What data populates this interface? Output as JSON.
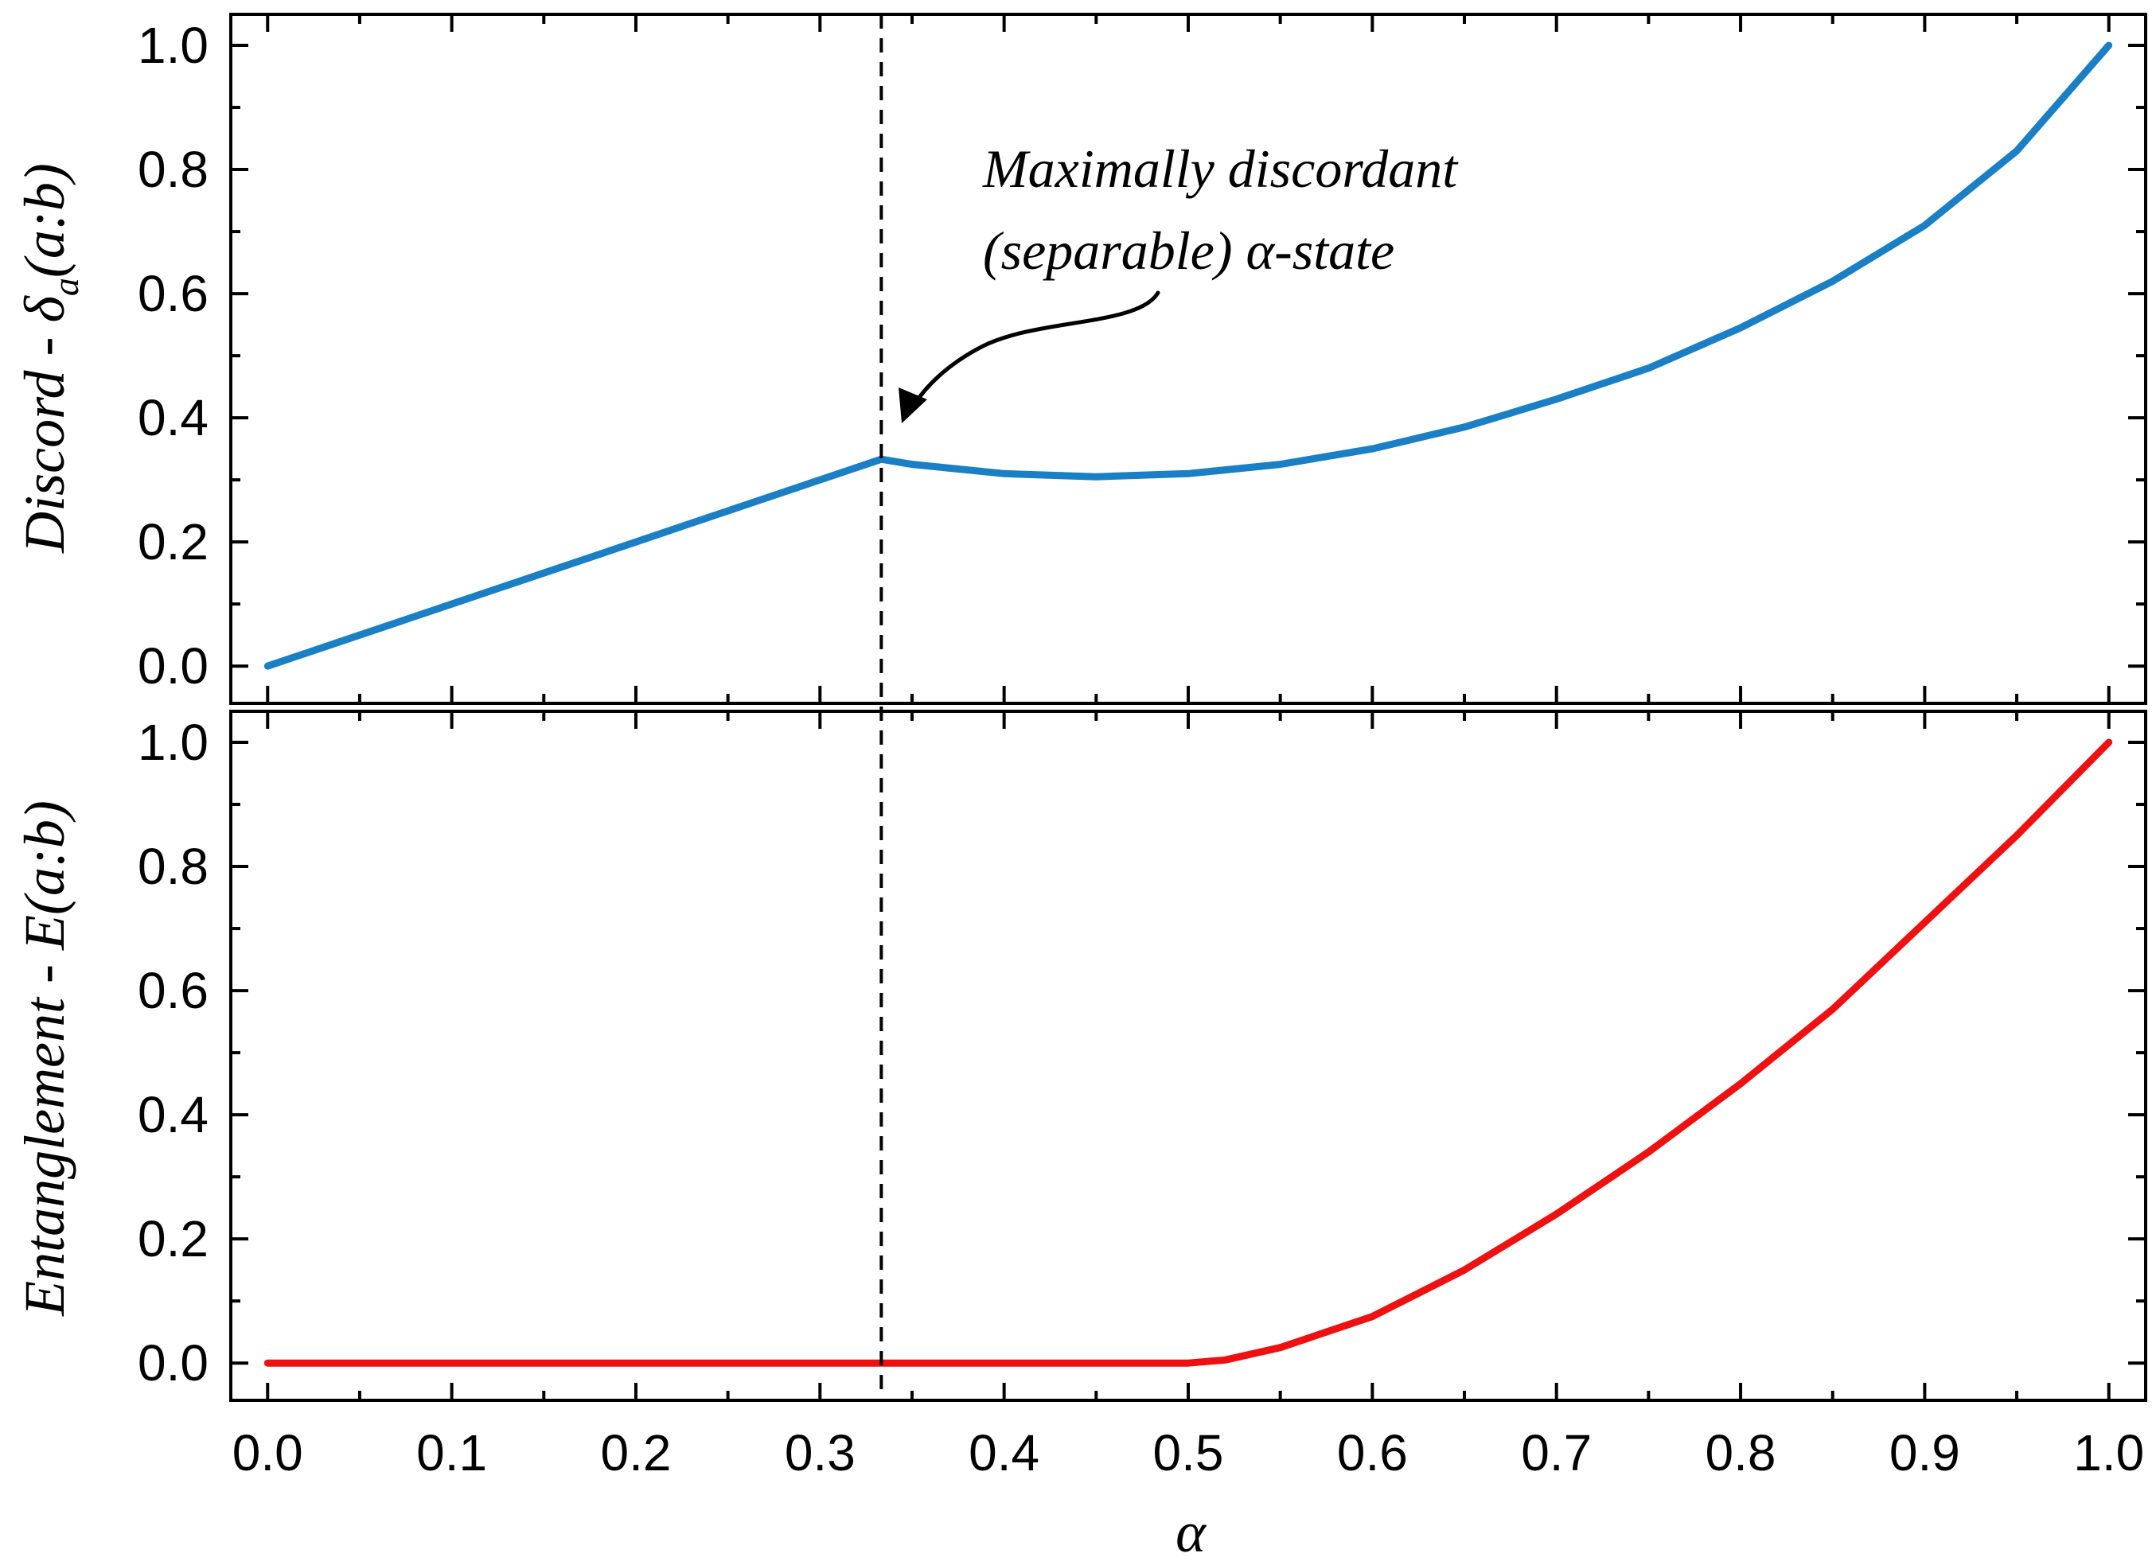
{
  "chart_data": [
    {
      "type": "line",
      "panel": "top",
      "ylabel": "Discord - δa(a:b)",
      "ylabel_parts": {
        "main": "Discord - δ",
        "subscript": "a",
        "tail": "(a:b)"
      },
      "xlabel": "",
      "xlim": [
        -0.02,
        1.02
      ],
      "ylim": [
        -0.06,
        1.05
      ],
      "yticks": [
        0.0,
        0.2,
        0.4,
        0.6,
        0.8,
        1.0
      ],
      "ytick_labels": [
        "0.0",
        "0.2",
        "0.4",
        "0.6",
        "0.8",
        "1.0"
      ],
      "xticks": [
        0.0,
        0.1,
        0.2,
        0.3,
        0.4,
        0.5,
        0.6,
        0.7,
        0.8,
        0.9,
        1.0
      ],
      "series": [
        {
          "name": "discord",
          "color": "#1a7fc4",
          "x": [
            0.0,
            0.05,
            0.1,
            0.15,
            0.2,
            0.25,
            0.3,
            0.3333,
            0.35,
            0.4,
            0.45,
            0.5,
            0.55,
            0.6,
            0.65,
            0.7,
            0.75,
            0.8,
            0.85,
            0.9,
            0.95,
            1.0
          ],
          "y": [
            0.0,
            0.05,
            0.1,
            0.15,
            0.2,
            0.25,
            0.3,
            0.3333,
            0.325,
            0.31,
            0.305,
            0.31,
            0.325,
            0.35,
            0.385,
            0.43,
            0.48,
            0.545,
            0.62,
            0.71,
            0.83,
            1.0
          ]
        }
      ],
      "annotation": {
        "lines": [
          "Maximally discordant",
          "(separable) α-state"
        ],
        "target": {
          "x": 0.345,
          "y": 0.4
        }
      }
    },
    {
      "type": "line",
      "panel": "bottom",
      "ylabel": "Entanglement - E(a:b)",
      "xlabel": "α",
      "xlim": [
        -0.02,
        1.02
      ],
      "ylim": [
        -0.06,
        1.05
      ],
      "yticks": [
        0.0,
        0.2,
        0.4,
        0.6,
        0.8,
        1.0
      ],
      "ytick_labels": [
        "0.0",
        "0.2",
        "0.4",
        "0.6",
        "0.8",
        "1.0"
      ],
      "xticks": [
        0.0,
        0.1,
        0.2,
        0.3,
        0.4,
        0.5,
        0.6,
        0.7,
        0.8,
        0.9,
        1.0
      ],
      "xtick_labels": [
        "0.0",
        "0.1",
        "0.2",
        "0.3",
        "0.4",
        "0.5",
        "0.6",
        "0.7",
        "0.8",
        "0.9",
        "1.0"
      ],
      "series": [
        {
          "name": "entanglement",
          "color": "#ee1111",
          "x": [
            0.0,
            0.1,
            0.2,
            0.3,
            0.4,
            0.5,
            0.52,
            0.55,
            0.6,
            0.65,
            0.7,
            0.75,
            0.8,
            0.85,
            0.9,
            0.95,
            1.0
          ],
          "y": [
            0.0,
            0.0,
            0.0,
            0.0,
            0.0,
            0.0,
            0.005,
            0.025,
            0.075,
            0.15,
            0.24,
            0.34,
            0.45,
            0.57,
            0.71,
            0.85,
            1.0
          ]
        }
      ]
    }
  ],
  "reference_line": {
    "x": 0.3333,
    "style": "dashed",
    "color": "#000000"
  }
}
